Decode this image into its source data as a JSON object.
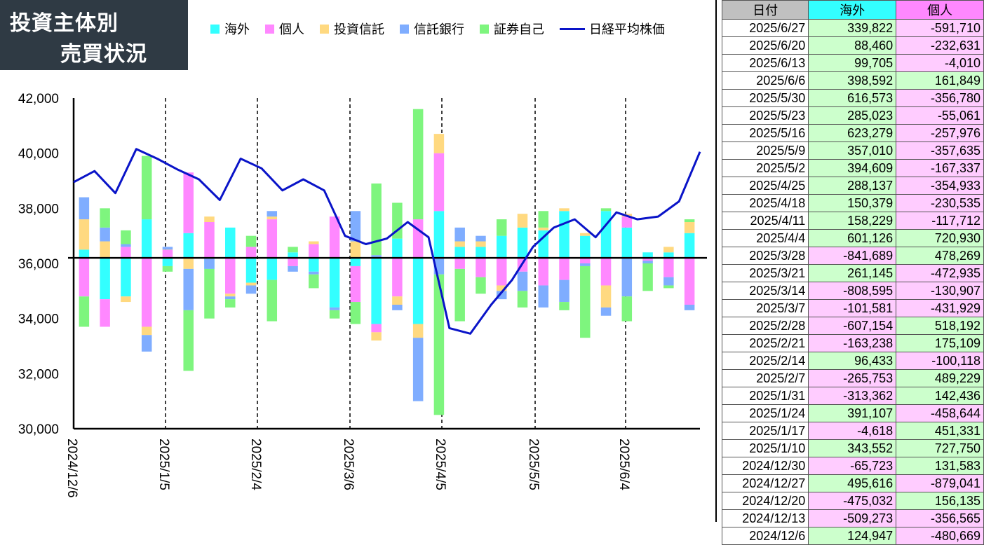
{
  "title": {
    "line1": "投資主体別",
    "line2": "売買状況"
  },
  "legend": [
    {
      "label": "海外",
      "color": "#33ffff",
      "kind": "box"
    },
    {
      "label": "個人",
      "color": "#ff88ff",
      "kind": "box"
    },
    {
      "label": "投資信託",
      "color": "#ffd980",
      "kind": "box"
    },
    {
      "label": "信託銀行",
      "color": "#7fadff",
      "kind": "box"
    },
    {
      "label": "証券自己",
      "color": "#7ef57e",
      "kind": "box"
    },
    {
      "label": "日経平均株価",
      "color": "#0a14c8",
      "kind": "line"
    }
  ],
  "chart_data": {
    "type": "bar",
    "y_axis": {
      "min": 30000,
      "max": 42000,
      "ticks": [
        "42,000",
        "40,000",
        "38,000",
        "36,000",
        "34,000",
        "32,000",
        "30,000"
      ]
    },
    "baseline": 36200,
    "x_labels": [
      "2024/12/6",
      "2025/1/5",
      "2025/2/4",
      "2025/3/6",
      "2025/4/5",
      "2025/5/5",
      "2025/6/4"
    ],
    "series_colors": {
      "海外": "#33ffff",
      "個人": "#ff88ff",
      "投資信託": "#ffd980",
      "信託銀行": "#7fadff",
      "証券自己": "#7ef57e"
    },
    "bars": [
      {
        "海外": [
          36500,
          36200
        ],
        "個人": [
          36200,
          34800
        ],
        "投資信託": [
          36500,
          37600
        ],
        "信託銀行": [
          37600,
          38400
        ],
        "証券自己": [
          34800,
          33700
        ]
      },
      {
        "海外": [
          36200,
          34700
        ],
        "個人": [
          34700,
          33700
        ],
        "投資信託": [
          36200,
          36800
        ],
        "信託銀行": [
          36800,
          37300
        ],
        "証券自己": [
          37300,
          38000
        ]
      },
      {
        "海外": [
          36200,
          34800
        ],
        "個人": [
          36200,
          36600
        ],
        "投資信託": [
          34800,
          34600
        ],
        "信託銀行": [
          36600,
          36700
        ],
        "証券自己": [
          36700,
          37200
        ]
      },
      {
        "海外": [
          36200,
          37600
        ],
        "個人": [
          36200,
          33700
        ],
        "投資信託": [
          33700,
          33400
        ],
        "信託銀行": [
          33400,
          32800
        ],
        "証券自己": [
          37600,
          39900
        ]
      },
      {
        "海外": [
          36200,
          35900
        ],
        "個人": [
          36200,
          36500
        ],
        "投資信託": [
          36500,
          36500
        ],
        "信託銀行": [
          36500,
          36600
        ],
        "証券自己": [
          35900,
          35700
        ]
      },
      {
        "海外": [
          36200,
          37100
        ],
        "個人": [
          37100,
          39300
        ],
        "投資信託": [
          36200,
          35800
        ],
        "信託銀行": [
          35800,
          34300
        ],
        "証券自己": [
          34300,
          32100
        ]
      },
      {
        "海外": [
          36200,
          35800
        ],
        "個人": [
          36200,
          37500
        ],
        "投資信託": [
          37500,
          37700
        ],
        "信託銀行": [
          35800,
          36200
        ],
        "証券自己": [
          35800,
          34000
        ]
      },
      {
        "海外": [
          36200,
          37300
        ],
        "個人": [
          36200,
          34900
        ],
        "投資信託": [
          34900,
          34800
        ],
        "信託銀行": [
          34800,
          34700
        ],
        "証券自己": [
          34700,
          34400
        ]
      },
      {
        "海外": [
          36200,
          35300
        ],
        "個人": [
          36200,
          36600
        ],
        "投資信託": [
          35300,
          35200
        ],
        "信託銀行": [
          35200,
          34900
        ],
        "証券自己": [
          36600,
          37000
        ]
      },
      {
        "海外": [
          36200,
          35400
        ],
        "個人": [
          36200,
          37600
        ],
        "投資信託": [
          37600,
          37700
        ],
        "信託銀行": [
          37700,
          37900
        ],
        "証券自己": [
          35400,
          33900
        ]
      },
      {
        "海外": [
          36200,
          36400
        ],
        "個人": [
          36200,
          35900
        ],
        "投資信託": [
          35900,
          35900
        ],
        "信託銀行": [
          35900,
          35700
        ],
        "証券自己": [
          36400,
          36600
        ]
      },
      {
        "海外": [
          36200,
          35700
        ],
        "個人": [
          36200,
          36700
        ],
        "投資信託": [
          36700,
          36800
        ],
        "信託銀行": [
          35700,
          35600
        ],
        "証券自己": [
          35600,
          35100
        ]
      },
      {
        "海外": [
          36200,
          34400
        ],
        "個人": [
          36200,
          37700
        ],
        "投資信託": [
          34400,
          34400
        ],
        "信託銀行": [
          34400,
          34300
        ],
        "証券自己": [
          34300,
          34000
        ]
      },
      {
        "海外": [
          36200,
          35900
        ],
        "個人": [
          35900,
          34600
        ],
        "投資信託": [
          36200,
          36800
        ],
        "信託銀行": [
          36800,
          37900
        ],
        "証券自己": [
          34600,
          33800
        ]
      },
      {
        "海外": [
          36200,
          33800
        ],
        "個人": [
          33800,
          33500
        ],
        "投資信託": [
          33500,
          33200
        ],
        "信託銀行": [
          36200,
          36300
        ],
        "証券自己": [
          36300,
          38900
        ]
      },
      {
        "海外": [
          36200,
          36900
        ],
        "個人": [
          36200,
          34800
        ],
        "投資信託": [
          34800,
          34500
        ],
        "信託銀行": [
          34500,
          34300
        ],
        "証券自己": [
          36900,
          38200
        ]
      },
      {
        "海外": [
          36200,
          33800
        ],
        "個人": [
          36200,
          37600
        ],
        "投資信託": [
          33800,
          33300
        ],
        "信託銀行": [
          33300,
          31000
        ],
        "証券自己": [
          37600,
          41600
        ]
      },
      {
        "海外": [
          36200,
          37900
        ],
        "個人": [
          37900,
          40000
        ],
        "投資信託": [
          40000,
          40700
        ],
        "信託銀行": [
          36200,
          35600
        ],
        "証券自己": [
          35600,
          30500
        ]
      },
      {
        "海外": [
          36200,
          36600
        ],
        "個人": [
          36200,
          35800
        ],
        "投資信託": [
          36600,
          36800
        ],
        "信託銀行": [
          36800,
          37300
        ],
        "証券自己": [
          35800,
          33900
        ]
      },
      {
        "海外": [
          36200,
          36600
        ],
        "個人": [
          36200,
          35500
        ],
        "投資信託": [
          36600,
          36800
        ],
        "信託銀行": [
          36800,
          37000
        ],
        "証券自己": [
          35500,
          34900
        ]
      },
      {
        "海外": [
          36200,
          37000
        ],
        "個人": [
          36200,
          35200
        ],
        "投資信託": [
          35200,
          35000
        ],
        "信託銀行": [
          35000,
          34700
        ],
        "証券自己": [
          37000,
          37600
        ]
      },
      {
        "海外": [
          36200,
          37300
        ],
        "個人": [
          36200,
          35700
        ],
        "投資信託": [
          37300,
          37800
        ],
        "信託銀行": [
          35700,
          35000
        ],
        "証券自己": [
          35000,
          34400
        ]
      },
      {
        "海外": [
          36200,
          37200
        ],
        "個人": [
          36200,
          35200
        ],
        "投資信託": [
          37200,
          37300
        ],
        "信託銀行": [
          35200,
          34400
        ],
        "証券自己": [
          37300,
          37900
        ]
      },
      {
        "海外": [
          36200,
          37900
        ],
        "個人": [
          36200,
          35400
        ],
        "投資信託": [
          37900,
          38000
        ],
        "信託銀行": [
          35400,
          34600
        ],
        "証券自己": [
          34600,
          34300
        ]
      },
      {
        "海外": [
          36200,
          37000
        ],
        "個人": [
          36200,
          36000
        ],
        "投資信託": [
          37000,
          37100
        ],
        "信託銀行": [
          36000,
          35900
        ],
        "証券自己": [
          35900,
          33300
        ]
      },
      {
        "海外": [
          36200,
          37900
        ],
        "個人": [
          36200,
          35200
        ],
        "投資信託": [
          35200,
          34400
        ],
        "信託銀行": [
          34400,
          34100
        ],
        "証券自己": [
          37900,
          38000
        ]
      },
      {
        "海外": [
          36200,
          37300
        ],
        "個人": [
          37300,
          37700
        ],
        "投資信託": [
          37700,
          37800
        ],
        "信託銀行": [
          36200,
          34800
        ],
        "証券自己": [
          34800,
          33900
        ]
      },
      {
        "海外": [
          36200,
          36400
        ],
        "個人": [
          36200,
          36100
        ],
        "投資信託": [
          36100,
          36100
        ],
        "信託銀行": [
          36100,
          36000
        ],
        "証券自己": [
          36000,
          35000
        ]
      },
      {
        "海外": [
          36200,
          36400
        ],
        "個人": [
          36200,
          35500
        ],
        "投資信託": [
          36400,
          36600
        ],
        "信託銀行": [
          35500,
          35200
        ],
        "証券自己": [
          35200,
          35100
        ]
      },
      {
        "海外": [
          36200,
          37100
        ],
        "個人": [
          36200,
          34500
        ],
        "投資信託": [
          37100,
          37500
        ],
        "信託銀行": [
          34500,
          34300
        ],
        "証券自己": [
          37500,
          37600
        ]
      }
    ],
    "line": {
      "name": "日経平均株価",
      "values": [
        38950,
        39350,
        38550,
        40150,
        39800,
        39400,
        39050,
        38300,
        39800,
        39450,
        38650,
        39050,
        38650,
        37000,
        36700,
        36900,
        37500,
        36950,
        33650,
        33450,
        34500,
        35400,
        36600,
        37300,
        37600,
        36950,
        37850,
        37600,
        37700,
        38250,
        40050
      ]
    }
  },
  "table": {
    "headers": [
      "日付",
      "海外",
      "個人"
    ],
    "rows": [
      [
        "2025/6/27",
        "339,822",
        "-591,710"
      ],
      [
        "2025/6/20",
        "88,460",
        "-232,631"
      ],
      [
        "2025/6/13",
        "99,705",
        "-4,010"
      ],
      [
        "2025/6/6",
        "398,592",
        "161,849"
      ],
      [
        "2025/5/30",
        "616,573",
        "-356,780"
      ],
      [
        "2025/5/23",
        "285,023",
        "-55,061"
      ],
      [
        "2025/5/16",
        "623,279",
        "-257,976"
      ],
      [
        "2025/5/9",
        "357,010",
        "-357,635"
      ],
      [
        "2025/5/2",
        "394,609",
        "-167,337"
      ],
      [
        "2025/4/25",
        "288,137",
        "-354,933"
      ],
      [
        "2025/4/18",
        "150,379",
        "-230,535"
      ],
      [
        "2025/4/11",
        "158,229",
        "-117,712"
      ],
      [
        "2025/4/4",
        "601,126",
        "720,930"
      ],
      [
        "2025/3/28",
        "-841,689",
        "478,269"
      ],
      [
        "2025/3/21",
        "261,145",
        "-472,935"
      ],
      [
        "2025/3/14",
        "-808,595",
        "-130,907"
      ],
      [
        "2025/3/7",
        "-101,581",
        "-431,929"
      ],
      [
        "2025/2/28",
        "-607,154",
        "518,192"
      ],
      [
        "2025/2/21",
        "-163,238",
        "175,109"
      ],
      [
        "2025/2/14",
        "96,433",
        "-100,118"
      ],
      [
        "2025/2/7",
        "-265,753",
        "489,229"
      ],
      [
        "2025/1/31",
        "-313,362",
        "142,436"
      ],
      [
        "2025/1/24",
        "391,107",
        "-458,644"
      ],
      [
        "2025/1/17",
        "-4,618",
        "451,331"
      ],
      [
        "2025/1/10",
        "343,552",
        "727,750"
      ],
      [
        "2024/12/30",
        "-65,723",
        "131,583"
      ],
      [
        "2024/12/27",
        "495,616",
        "-879,041"
      ],
      [
        "2024/12/20",
        "-475,032",
        "156,135"
      ],
      [
        "2024/12/13",
        "-509,273",
        "-356,565"
      ],
      [
        "2024/12/6",
        "124,947",
        "-480,669"
      ]
    ],
    "colors": {
      "header_date": "#c0c0c0",
      "header_kaigai": "#33ffff",
      "header_kojin": "#ff88ff",
      "positive": "#ccffcc",
      "negative": "#ffccff"
    }
  }
}
